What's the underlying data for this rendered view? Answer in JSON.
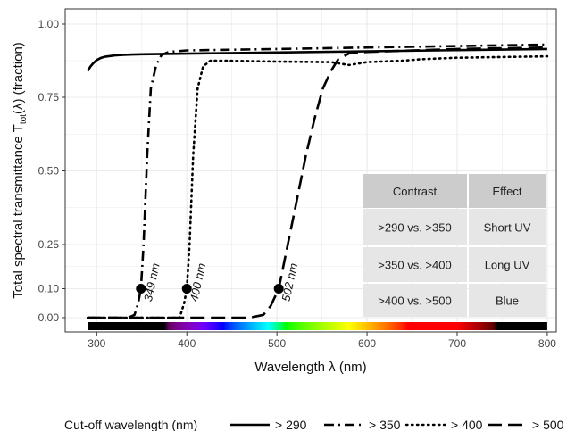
{
  "chart_data": {
    "type": "line",
    "xlabel": "Wavelength λ (nm)",
    "ylabel": {
      "prefix": "Total spectral transmittance T",
      "subscript": "tot",
      "suffix": "(λ)  (fraction)"
    },
    "xlim": [
      265,
      810
    ],
    "ylim": [
      -0.04,
      1.04
    ],
    "y_scale": "custom-nonlinear",
    "x_ticks": [
      300,
      400,
      500,
      600,
      700,
      800
    ],
    "y_ticks": [
      {
        "value": 0.0,
        "label": "0.00"
      },
      {
        "value": 0.1,
        "label": "0.10"
      },
      {
        "value": 0.25,
        "label": "0.25"
      },
      {
        "value": 0.5,
        "label": "0.50"
      },
      {
        "value": 0.75,
        "label": "0.75"
      },
      {
        "value": 1.0,
        "label": "1.00"
      }
    ],
    "grid": true,
    "legend_position": "bottom",
    "legend_title": "Cut-off wavelength (nm)",
    "series": [
      {
        "name": "> 290",
        "dash": "solid",
        "x": [
          290,
          293,
          296,
          300,
          305,
          310,
          320,
          330,
          340,
          350,
          400,
          500,
          600,
          700,
          800
        ],
        "y": [
          0.84,
          0.855,
          0.866,
          0.877,
          0.885,
          0.889,
          0.893,
          0.895,
          0.896,
          0.897,
          0.899,
          0.903,
          0.907,
          0.911,
          0.915
        ]
      },
      {
        "name": "> 350",
        "dash": "dashdot",
        "x": [
          290,
          335,
          342,
          346,
          349,
          352,
          356,
          360,
          366,
          372,
          380,
          400,
          500,
          600,
          700,
          800
        ],
        "y": [
          0.0,
          0.0,
          0.01,
          0.05,
          0.1,
          0.25,
          0.55,
          0.78,
          0.86,
          0.895,
          0.905,
          0.91,
          0.915,
          0.92,
          0.925,
          0.93
        ]
      },
      {
        "name": "> 400",
        "dash": "dotted",
        "x": [
          290,
          392,
          397,
          400,
          403,
          407,
          412,
          418,
          426,
          440,
          500,
          560,
          580,
          600,
          640,
          660,
          700,
          800
        ],
        "y": [
          0.0,
          0.0,
          0.05,
          0.1,
          0.25,
          0.55,
          0.78,
          0.855,
          0.875,
          0.875,
          0.872,
          0.87,
          0.86,
          0.87,
          0.875,
          0.88,
          0.885,
          0.89
        ]
      },
      {
        "name": "> 500",
        "dash": "longdash",
        "x": [
          290,
          470,
          485,
          493,
          502,
          512,
          522,
          532,
          542,
          551,
          560,
          568,
          580,
          600,
          700,
          800
        ],
        "y": [
          0.0,
          0.0,
          0.01,
          0.04,
          0.1,
          0.25,
          0.4,
          0.55,
          0.68,
          0.78,
          0.84,
          0.88,
          0.9,
          0.905,
          0.915,
          0.92
        ]
      }
    ],
    "cutoff_points": [
      {
        "x": 349,
        "y": 0.1,
        "label": "349 nm"
      },
      {
        "x": 400,
        "y": 0.1,
        "label": "400 nm"
      },
      {
        "x": 502,
        "y": 0.1,
        "label": "502 nm"
      }
    ],
    "spectrum_bar": {
      "from": 290,
      "to": 800
    },
    "table": {
      "headers": [
        "Contrast",
        "Effect"
      ],
      "rows": [
        [
          ">290 vs. >350",
          "Short UV"
        ],
        [
          ">350 vs. >400",
          "Long UV"
        ],
        [
          ">400 vs. >500",
          "Blue"
        ]
      ]
    }
  },
  "colors": {
    "line": "#000000",
    "grid": "#ebebeb",
    "panel_border": "#333333",
    "table_header": "#cccccc",
    "table_cell": "#e6e6e6"
  }
}
